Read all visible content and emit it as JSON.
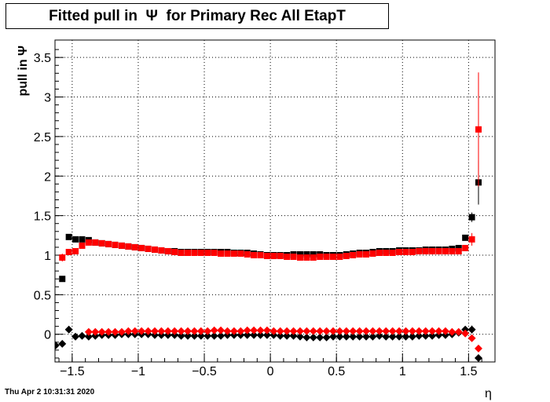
{
  "chart_data": {
    "type": "scatter",
    "title": "Fitted pull in  Ψ  for Primary Rec All EtapT",
    "xlabel": "η",
    "ylabel": "pull in  Ψ",
    "xlim": [
      -1.63,
      1.7
    ],
    "ylim": [
      -0.35,
      3.72
    ],
    "x_ticks": [
      "−1.5",
      "−1",
      "−0.5",
      "0",
      "0.5",
      "1",
      "1.5"
    ],
    "y_ticks": [
      "0",
      "0.5",
      "1",
      "1.5",
      "2",
      "2.5",
      "3",
      "3.5"
    ],
    "grid": true,
    "series": [
      {
        "color": "#000000",
        "marker": "square",
        "x": [
          -1.575,
          -1.525,
          -1.475,
          -1.425,
          -1.375,
          -1.325,
          -1.275,
          -1.225,
          -1.175,
          -1.125,
          -1.075,
          -1.025,
          -0.975,
          -0.925,
          -0.875,
          -0.825,
          -0.775,
          -0.725,
          -0.675,
          -0.625,
          -0.575,
          -0.525,
          -0.475,
          -0.425,
          -0.375,
          -0.325,
          -0.275,
          -0.225,
          -0.175,
          -0.125,
          -0.075,
          -0.025,
          0.025,
          0.075,
          0.125,
          0.175,
          0.225,
          0.275,
          0.325,
          0.375,
          0.425,
          0.475,
          0.525,
          0.575,
          0.625,
          0.675,
          0.725,
          0.775,
          0.825,
          0.875,
          0.925,
          0.975,
          1.025,
          1.075,
          1.125,
          1.175,
          1.225,
          1.275,
          1.325,
          1.375,
          1.425,
          1.475,
          1.525,
          1.575
        ],
        "values": [
          0.7,
          1.23,
          1.2,
          1.2,
          1.19,
          1.16,
          1.15,
          1.14,
          1.13,
          1.12,
          1.11,
          1.1,
          1.09,
          1.08,
          1.07,
          1.06,
          1.05,
          1.05,
          1.04,
          1.04,
          1.04,
          1.04,
          1.04,
          1.04,
          1.04,
          1.04,
          1.03,
          1.03,
          1.03,
          1.02,
          1.01,
          1.0,
          1.0,
          1.0,
          1.0,
          1.01,
          1.01,
          1.01,
          1.01,
          1.01,
          1.0,
          1.0,
          1.0,
          1.01,
          1.02,
          1.03,
          1.03,
          1.04,
          1.05,
          1.05,
          1.05,
          1.06,
          1.06,
          1.06,
          1.06,
          1.07,
          1.07,
          1.07,
          1.07,
          1.08,
          1.09,
          1.22,
          1.48,
          1.92
        ],
        "errors": [
          0.03,
          0.02,
          0.02,
          0.02,
          0.02,
          0.02,
          0.02,
          0.02,
          0.02,
          0.02,
          0.02,
          0.02,
          0.02,
          0.02,
          0.02,
          0.02,
          0.02,
          0.02,
          0.02,
          0.02,
          0.02,
          0.02,
          0.02,
          0.02,
          0.02,
          0.02,
          0.02,
          0.02,
          0.02,
          0.02,
          0.02,
          0.02,
          0.02,
          0.02,
          0.02,
          0.02,
          0.02,
          0.02,
          0.02,
          0.02,
          0.02,
          0.02,
          0.02,
          0.02,
          0.02,
          0.02,
          0.02,
          0.02,
          0.02,
          0.02,
          0.02,
          0.02,
          0.02,
          0.02,
          0.02,
          0.02,
          0.02,
          0.02,
          0.02,
          0.02,
          0.02,
          0.03,
          0.06,
          0.28
        ]
      },
      {
        "color": "#ff0000",
        "marker": "square",
        "x": [
          -1.575,
          -1.525,
          -1.475,
          -1.425,
          -1.375,
          -1.325,
          -1.275,
          -1.225,
          -1.175,
          -1.125,
          -1.075,
          -1.025,
          -0.975,
          -0.925,
          -0.875,
          -0.825,
          -0.775,
          -0.725,
          -0.675,
          -0.625,
          -0.575,
          -0.525,
          -0.475,
          -0.425,
          -0.375,
          -0.325,
          -0.275,
          -0.225,
          -0.175,
          -0.125,
          -0.075,
          -0.025,
          0.025,
          0.075,
          0.125,
          0.175,
          0.225,
          0.275,
          0.325,
          0.375,
          0.425,
          0.475,
          0.525,
          0.575,
          0.625,
          0.675,
          0.725,
          0.775,
          0.825,
          0.875,
          0.925,
          0.975,
          1.025,
          1.075,
          1.125,
          1.175,
          1.225,
          1.275,
          1.325,
          1.375,
          1.425,
          1.475,
          1.525,
          1.575
        ],
        "values": [
          0.97,
          1.04,
          1.05,
          1.12,
          1.16,
          1.16,
          1.15,
          1.14,
          1.13,
          1.12,
          1.11,
          1.1,
          1.09,
          1.08,
          1.07,
          1.06,
          1.05,
          1.04,
          1.03,
          1.03,
          1.03,
          1.03,
          1.03,
          1.03,
          1.02,
          1.02,
          1.02,
          1.02,
          1.01,
          1.0,
          1.0,
          0.99,
          0.99,
          0.99,
          0.98,
          0.98,
          0.97,
          0.97,
          0.97,
          0.98,
          0.98,
          0.98,
          0.98,
          0.99,
          1.0,
          1.01,
          1.01,
          1.02,
          1.03,
          1.03,
          1.03,
          1.04,
          1.04,
          1.04,
          1.05,
          1.05,
          1.05,
          1.05,
          1.05,
          1.05,
          1.05,
          1.09,
          1.2,
          2.59
        ],
        "errors": [
          0.05,
          0.02,
          0.02,
          0.02,
          0.02,
          0.02,
          0.02,
          0.02,
          0.02,
          0.02,
          0.02,
          0.02,
          0.02,
          0.02,
          0.02,
          0.02,
          0.02,
          0.02,
          0.02,
          0.02,
          0.02,
          0.02,
          0.02,
          0.02,
          0.02,
          0.02,
          0.02,
          0.02,
          0.02,
          0.02,
          0.02,
          0.02,
          0.02,
          0.02,
          0.02,
          0.02,
          0.02,
          0.02,
          0.02,
          0.02,
          0.02,
          0.02,
          0.02,
          0.02,
          0.02,
          0.02,
          0.02,
          0.02,
          0.02,
          0.02,
          0.02,
          0.02,
          0.02,
          0.02,
          0.02,
          0.02,
          0.02,
          0.02,
          0.02,
          0.02,
          0.02,
          0.03,
          0.08,
          0.72
        ]
      },
      {
        "color": "#000000",
        "marker": "diamond",
        "x": [
          -1.625,
          -1.575,
          -1.525,
          -1.475,
          -1.425,
          -1.375,
          -1.325,
          -1.275,
          -1.225,
          -1.175,
          -1.125,
          -1.075,
          -1.025,
          -0.975,
          -0.925,
          -0.875,
          -0.825,
          -0.775,
          -0.725,
          -0.675,
          -0.625,
          -0.575,
          -0.525,
          -0.475,
          -0.425,
          -0.375,
          -0.325,
          -0.275,
          -0.225,
          -0.175,
          -0.125,
          -0.075,
          -0.025,
          0.025,
          0.075,
          0.125,
          0.175,
          0.225,
          0.275,
          0.325,
          0.375,
          0.425,
          0.475,
          0.525,
          0.575,
          0.625,
          0.675,
          0.725,
          0.775,
          0.825,
          0.875,
          0.925,
          0.975,
          1.025,
          1.075,
          1.125,
          1.175,
          1.225,
          1.275,
          1.325,
          1.375,
          1.425,
          1.475,
          1.525,
          1.575
        ],
        "values": [
          -0.14,
          -0.12,
          0.06,
          -0.03,
          -0.02,
          -0.03,
          -0.02,
          -0.01,
          -0.01,
          -0.01,
          0.0,
          0.0,
          0.0,
          0.0,
          0.0,
          -0.01,
          -0.01,
          -0.01,
          -0.01,
          -0.02,
          -0.02,
          -0.02,
          -0.02,
          -0.02,
          -0.02,
          -0.02,
          -0.01,
          -0.01,
          -0.01,
          -0.01,
          -0.01,
          -0.01,
          -0.01,
          -0.01,
          -0.02,
          -0.02,
          -0.02,
          -0.03,
          -0.04,
          -0.04,
          -0.04,
          -0.04,
          -0.03,
          -0.03,
          -0.03,
          -0.03,
          -0.03,
          -0.03,
          -0.03,
          -0.02,
          -0.03,
          -0.03,
          -0.03,
          -0.03,
          -0.03,
          -0.02,
          -0.02,
          -0.02,
          -0.01,
          -0.01,
          0.0,
          0.02,
          0.06,
          0.06,
          -0.3
        ],
        "errors": [
          0.03,
          0.03,
          0.02,
          0.02,
          0.02,
          0.02,
          0.02,
          0.02,
          0.02,
          0.02,
          0.02,
          0.02,
          0.02,
          0.02,
          0.02,
          0.02,
          0.02,
          0.02,
          0.02,
          0.02,
          0.02,
          0.02,
          0.02,
          0.02,
          0.02,
          0.02,
          0.02,
          0.02,
          0.02,
          0.02,
          0.02,
          0.02,
          0.02,
          0.02,
          0.02,
          0.02,
          0.02,
          0.02,
          0.02,
          0.02,
          0.02,
          0.02,
          0.02,
          0.02,
          0.02,
          0.02,
          0.02,
          0.02,
          0.02,
          0.02,
          0.02,
          0.02,
          0.02,
          0.02,
          0.02,
          0.02,
          0.02,
          0.02,
          0.02,
          0.02,
          0.02,
          0.02,
          0.03,
          0.05,
          0.04
        ]
      },
      {
        "color": "#ff0000",
        "marker": "diamond",
        "x": [
          -1.375,
          -1.325,
          -1.275,
          -1.225,
          -1.175,
          -1.125,
          -1.075,
          -1.025,
          -0.975,
          -0.925,
          -0.875,
          -0.825,
          -0.775,
          -0.725,
          -0.675,
          -0.625,
          -0.575,
          -0.525,
          -0.475,
          -0.425,
          -0.375,
          -0.325,
          -0.275,
          -0.225,
          -0.175,
          -0.125,
          -0.075,
          -0.025,
          0.025,
          0.075,
          0.125,
          0.175,
          0.225,
          0.275,
          0.325,
          0.375,
          0.425,
          0.475,
          0.525,
          0.575,
          0.625,
          0.675,
          0.725,
          0.775,
          0.825,
          0.875,
          0.925,
          0.975,
          1.025,
          1.075,
          1.125,
          1.175,
          1.225,
          1.275,
          1.325,
          1.375,
          1.425,
          1.475,
          1.525,
          1.575
        ],
        "values": [
          0.03,
          0.03,
          0.03,
          0.03,
          0.03,
          0.03,
          0.04,
          0.04,
          0.04,
          0.04,
          0.04,
          0.04,
          0.04,
          0.04,
          0.04,
          0.04,
          0.04,
          0.04,
          0.04,
          0.05,
          0.05,
          0.04,
          0.04,
          0.04,
          0.05,
          0.05,
          0.05,
          0.05,
          0.04,
          0.04,
          0.04,
          0.04,
          0.04,
          0.04,
          0.04,
          0.04,
          0.04,
          0.04,
          0.04,
          0.04,
          0.04,
          0.04,
          0.04,
          0.04,
          0.04,
          0.04,
          0.04,
          0.04,
          0.04,
          0.04,
          0.04,
          0.04,
          0.04,
          0.04,
          0.04,
          0.03,
          0.03,
          0.01,
          -0.05,
          -0.18
        ],
        "errors": [
          0.02,
          0.02,
          0.02,
          0.02,
          0.02,
          0.02,
          0.02,
          0.02,
          0.02,
          0.02,
          0.02,
          0.02,
          0.02,
          0.02,
          0.02,
          0.02,
          0.02,
          0.02,
          0.02,
          0.02,
          0.02,
          0.02,
          0.02,
          0.02,
          0.02,
          0.02,
          0.02,
          0.02,
          0.02,
          0.02,
          0.02,
          0.02,
          0.02,
          0.02,
          0.02,
          0.02,
          0.02,
          0.02,
          0.02,
          0.02,
          0.02,
          0.02,
          0.02,
          0.02,
          0.02,
          0.02,
          0.02,
          0.02,
          0.02,
          0.02,
          0.02,
          0.02,
          0.02,
          0.02,
          0.02,
          0.02,
          0.02,
          0.02,
          0.03,
          0.04
        ]
      }
    ]
  },
  "footer": "Thu Apr  2 10:31:31 2020"
}
